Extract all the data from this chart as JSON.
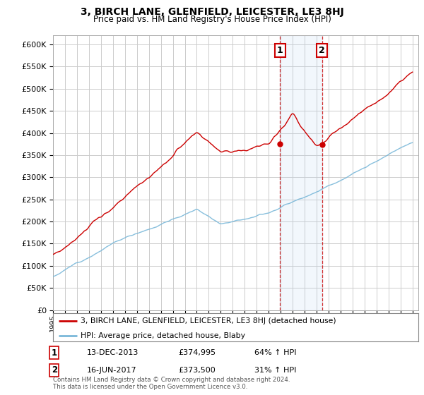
{
  "title": "3, BIRCH LANE, GLENFIELD, LEICESTER, LE3 8HJ",
  "subtitle": "Price paid vs. HM Land Registry's House Price Index (HPI)",
  "legend_line1": "3, BIRCH LANE, GLENFIELD, LEICESTER, LE3 8HJ (detached house)",
  "legend_line2": "HPI: Average price, detached house, Blaby",
  "annotation1_label": "1",
  "annotation1_date": "13-DEC-2013",
  "annotation1_price": "£374,995",
  "annotation1_hpi": "64% ↑ HPI",
  "annotation2_label": "2",
  "annotation2_date": "16-JUN-2017",
  "annotation2_price": "£373,500",
  "annotation2_hpi": "31% ↑ HPI",
  "copyright": "Contains HM Land Registry data © Crown copyright and database right 2024.\nThis data is licensed under the Open Government Licence v3.0.",
  "sale1_year": 2013.95,
  "sale2_year": 2017.45,
  "sale1_value": 374995,
  "sale2_value": 373500,
  "ylim_min": 0,
  "ylim_max": 620000,
  "xlim_min": 1995,
  "xlim_max": 2025.5,
  "hpi_color": "#7ab8d9",
  "property_color": "#cc0000",
  "shading_color": "#ddeeff",
  "annotation_box_color": "#cc0000",
  "background_color": "#ffffff",
  "grid_color": "#cccccc"
}
